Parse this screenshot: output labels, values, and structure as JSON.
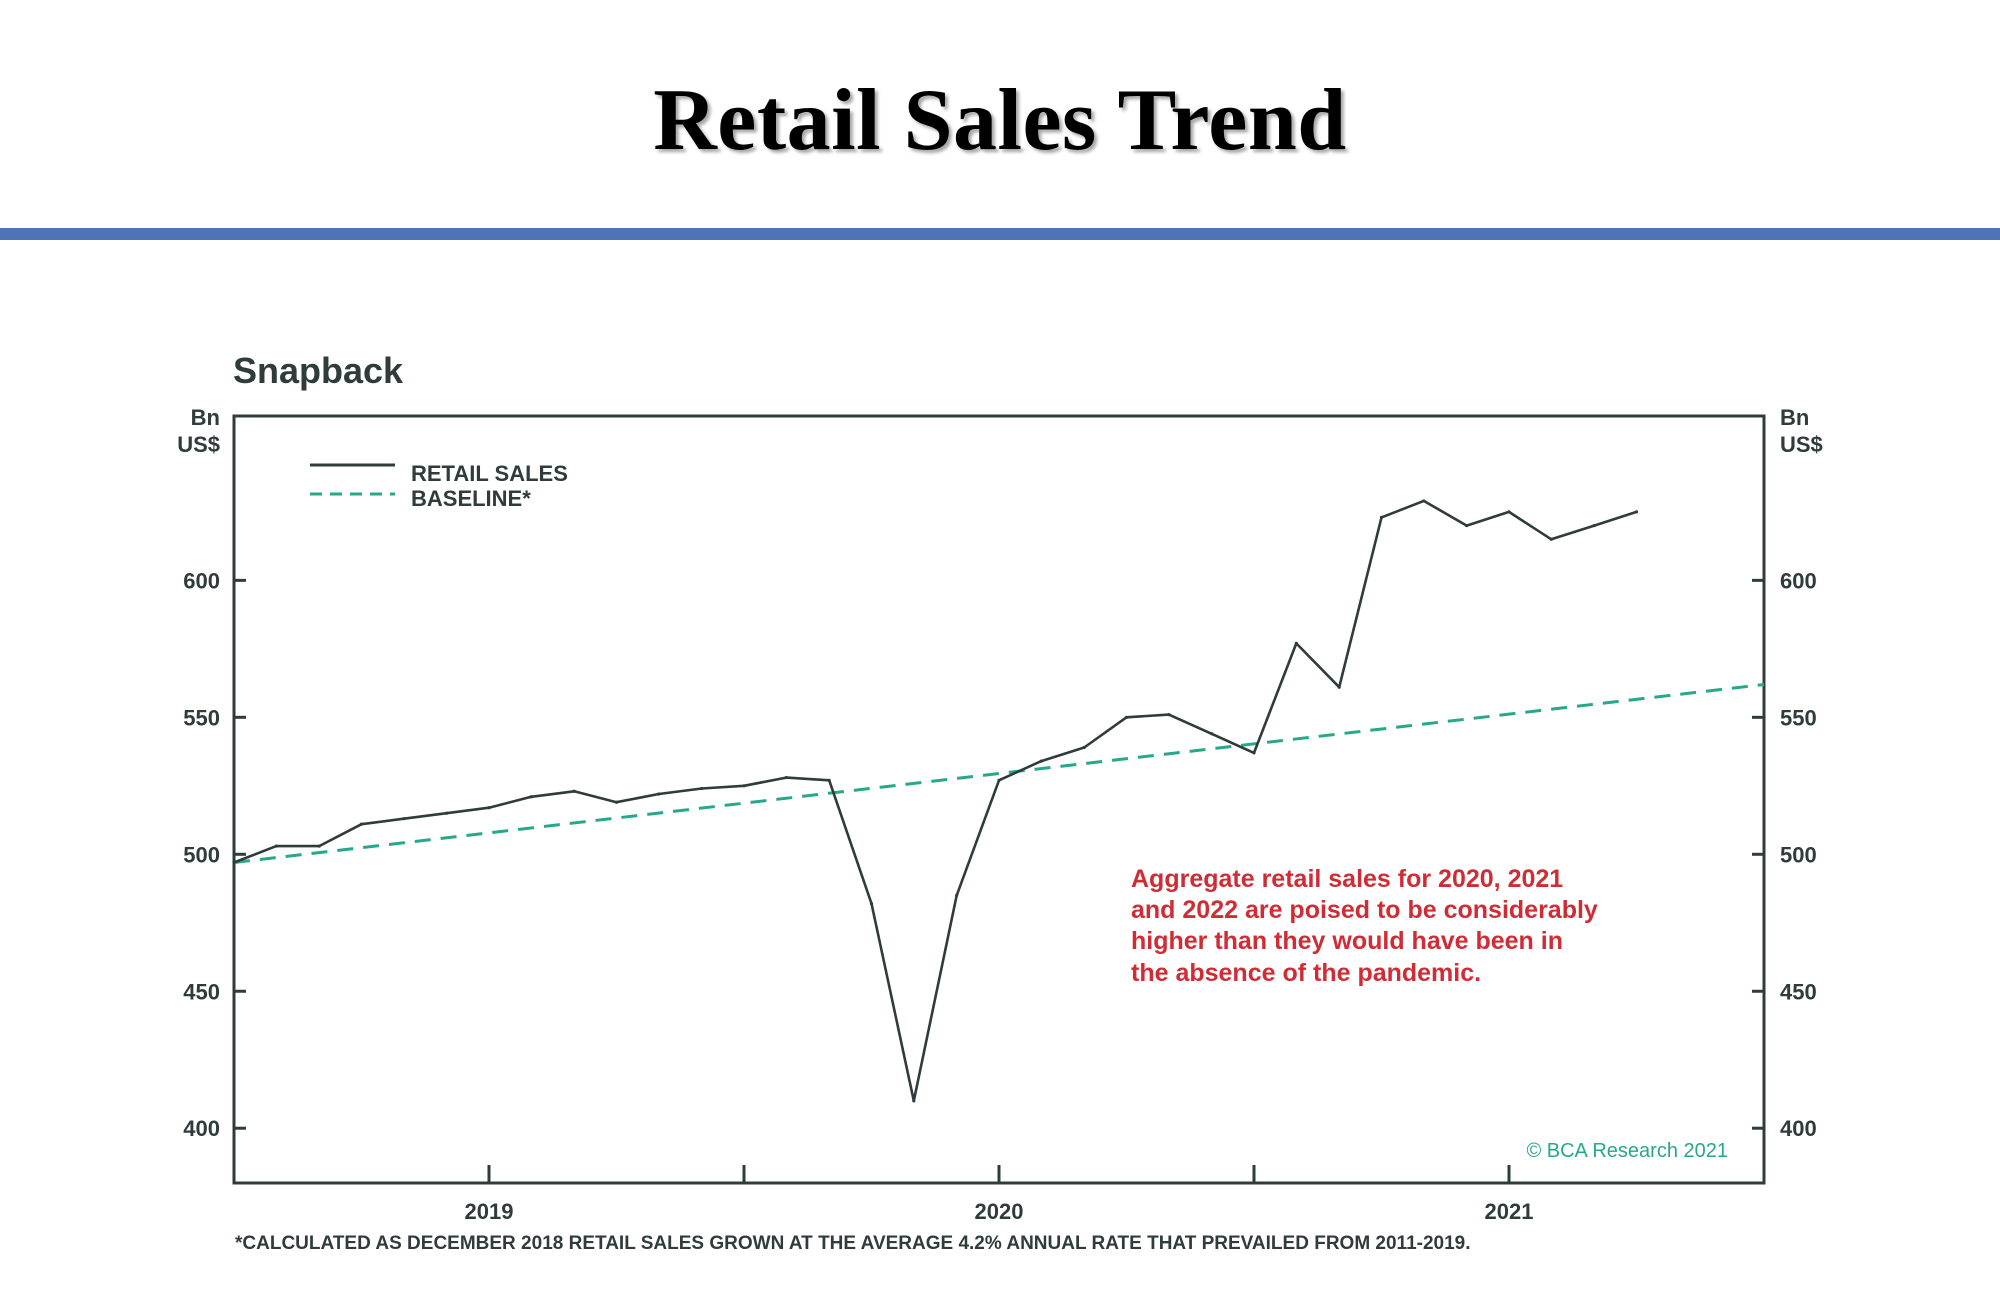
{
  "page": {
    "title": "Retail Sales Trend"
  },
  "colors": {
    "title_rule": "#4f74b5",
    "retail_sales_line": "#2f3c3b",
    "baseline_line": "#26a98a",
    "annotation_text": "#cf2d36",
    "axis": "#2f3c3b",
    "watermark": "#26a98a"
  },
  "chart_data": {
    "type": "line",
    "title": "Snapback",
    "y_unit_left": [
      "Bn",
      "US$"
    ],
    "y_unit_right": [
      "Bn",
      "US$"
    ],
    "ylim": [
      380,
      660
    ],
    "yticks": [
      400,
      450,
      500,
      550,
      600
    ],
    "ytick_labels": [
      "400",
      "450",
      "500",
      "550",
      "600"
    ],
    "xlim": [
      2018.5,
      2021.5
    ],
    "xtick_labels": [
      "2019",
      "2020",
      "2021"
    ],
    "xtick_label_positions": [
      2019,
      2020,
      2021
    ],
    "x_major_ticks": [
      2019,
      2019.5,
      2020,
      2020.5,
      2021
    ],
    "grid": false,
    "legend_position": "top-left",
    "series": [
      {
        "name": "RETAIL SALES",
        "style": "solid",
        "x": [
          2018.5,
          2018.583,
          2018.667,
          2018.75,
          2018.833,
          2018.917,
          2019.0,
          2019.083,
          2019.167,
          2019.25,
          2019.333,
          2019.417,
          2019.5,
          2019.583,
          2019.667,
          2019.75,
          2019.833,
          2019.917,
          2020.0,
          2020.083,
          2020.167,
          2020.25,
          2020.333,
          2020.417,
          2020.5,
          2020.583,
          2020.667,
          2020.75,
          2020.833,
          2020.917,
          2021.0,
          2021.083,
          2021.167,
          2021.25
        ],
        "values": [
          497,
          503,
          503,
          511,
          513,
          515,
          517,
          521,
          523,
          519,
          522,
          524,
          525,
          528,
          527,
          482,
          410,
          485,
          527,
          534,
          539,
          550,
          551,
          544,
          537,
          577,
          561,
          623,
          629,
          620,
          625,
          615,
          620,
          625
        ]
      },
      {
        "name": "BASELINE*",
        "style": "dashed",
        "x": [
          2018.5,
          2021.5
        ],
        "values": [
          497,
          562
        ]
      }
    ],
    "annotations": [
      {
        "text_lines": [
          "Aggregate retail sales for 2020, 2021",
          "and 2022 are poised to be considerably",
          "higher than they would have been in",
          "the absence of the pandemic."
        ]
      }
    ],
    "watermark": "© BCA Research 2021",
    "footnote": "*CALCULATED AS DECEMBER 2018 RETAIL SALES GROWN AT THE AVERAGE 4.2% ANNUAL RATE THAT PREVAILED FROM 2011-2019."
  }
}
